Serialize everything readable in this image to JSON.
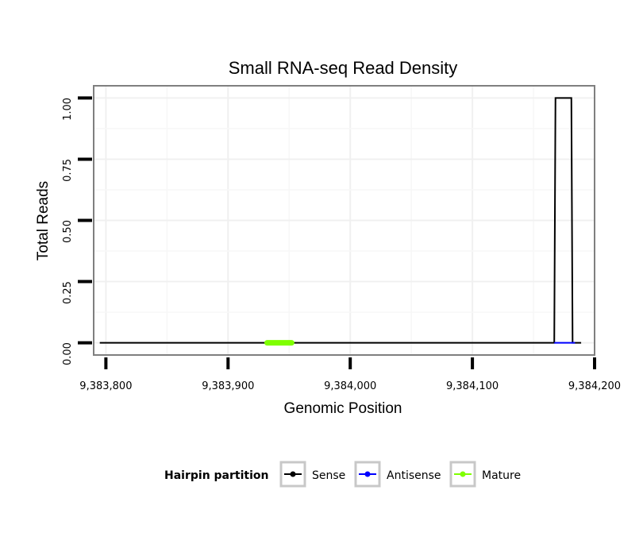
{
  "chart_data": {
    "type": "line",
    "title": "Small RNA-seq Read Density",
    "xlabel": "Genomic Position",
    "ylabel": "Total Reads",
    "xlim": [
      9383790,
      9384200
    ],
    "ylim": [
      -0.05,
      1.05
    ],
    "x_ticks": [
      9383800,
      9383900,
      9384000,
      9384100,
      9384200
    ],
    "x_tick_labels": [
      "9,383,800",
      "9,383,900",
      "9,384,000",
      "9,384,100",
      "9,384,200"
    ],
    "y_ticks": [
      0,
      0.25,
      0.5,
      0.75,
      1
    ],
    "y_tick_labels": [
      "0.00",
      "0.25",
      "0.50",
      "0.75",
      "1.00"
    ],
    "grid": true,
    "legend": {
      "title": "Hairpin partition",
      "placement": "bottom",
      "entries": [
        "Sense",
        "Antisense",
        "Mature"
      ]
    },
    "series": [
      {
        "name": "Sense",
        "color": "#000000",
        "x": [
          9383795,
          9384166,
          9384167,
          9384168,
          9384181,
          9384182,
          9384184,
          9384189
        ],
        "y": [
          0,
          0,
          0,
          1,
          1,
          0,
          0,
          0
        ]
      },
      {
        "name": "Antisense",
        "color": "#0000ff",
        "x": [
          9384167,
          9384184
        ],
        "y": [
          0,
          0
        ]
      },
      {
        "name": "Mature",
        "color": "#7fff00",
        "x": [
          9383932,
          9383952
        ],
        "y": [
          0,
          0
        ]
      }
    ]
  }
}
